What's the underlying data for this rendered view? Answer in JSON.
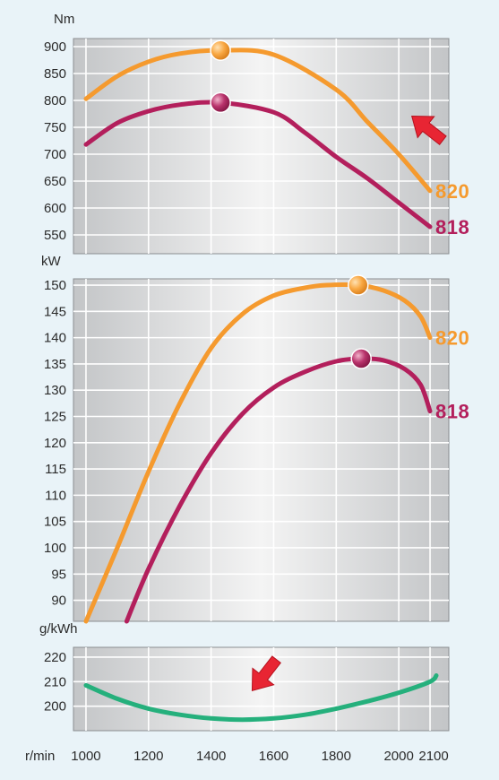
{
  "chart_data": [
    {
      "type": "line",
      "panel": "torque",
      "unit_label": "Nm",
      "y_ticks": [
        900,
        850,
        800,
        750,
        700,
        650,
        600,
        550
      ],
      "ylim": [
        515,
        915
      ],
      "xlim": [
        960,
        2160
      ],
      "grid": true,
      "series": [
        {
          "name": "820",
          "color": "#f59a2e",
          "points": [
            [
              1000,
              803
            ],
            [
              1100,
              845
            ],
            [
              1200,
              872
            ],
            [
              1300,
              887
            ],
            [
              1430,
              893
            ],
            [
              1600,
              885
            ],
            [
              1800,
              820
            ],
            [
              1900,
              760
            ],
            [
              2000,
              700
            ],
            [
              2100,
              632
            ]
          ],
          "peak": [
            1430,
            893
          ]
        },
        {
          "name": "818",
          "color": "#b31f5c",
          "points": [
            [
              1000,
              718
            ],
            [
              1100,
              758
            ],
            [
              1200,
              780
            ],
            [
              1300,
              792
            ],
            [
              1430,
              796
            ],
            [
              1600,
              778
            ],
            [
              1700,
              740
            ],
            [
              1800,
              695
            ],
            [
              1900,
              655
            ],
            [
              2000,
              610
            ],
            [
              2100,
              565
            ]
          ],
          "peak": [
            1430,
            796
          ]
        }
      ],
      "annotation": {
        "type": "arrow",
        "direction": "up-left",
        "color": "#e82533"
      }
    },
    {
      "type": "line",
      "panel": "power",
      "unit_label": "kW",
      "y_ticks": [
        150,
        145,
        140,
        135,
        130,
        125,
        120,
        115,
        110,
        105,
        100,
        95,
        90
      ],
      "ylim": [
        86,
        151.2
      ],
      "xlim": [
        960,
        2160
      ],
      "grid": true,
      "series": [
        {
          "name": "820",
          "color": "#f59a2e",
          "points": [
            [
              1000,
              86
            ],
            [
              1100,
              100
            ],
            [
              1200,
              114.5
            ],
            [
              1300,
              127.5
            ],
            [
              1400,
              138
            ],
            [
              1500,
              144.5
            ],
            [
              1600,
              148
            ],
            [
              1700,
              149.5
            ],
            [
              1770,
              150
            ],
            [
              1870,
              150
            ],
            [
              1950,
              149
            ],
            [
              2020,
              147
            ],
            [
              2070,
              144
            ],
            [
              2100,
              140
            ]
          ],
          "peak": [
            1870,
            150
          ]
        },
        {
          "name": "818",
          "color": "#b31f5c",
          "points": [
            [
              1130,
              86
            ],
            [
              1200,
              96
            ],
            [
              1300,
              108
            ],
            [
              1400,
              118
            ],
            [
              1500,
              125.5
            ],
            [
              1600,
              130.5
            ],
            [
              1700,
              133.5
            ],
            [
              1800,
              135.5
            ],
            [
              1880,
              136
            ],
            [
              1950,
              135.7
            ],
            [
              2020,
              134
            ],
            [
              2070,
              131
            ],
            [
              2100,
              126
            ]
          ],
          "peak": [
            1880,
            136
          ]
        }
      ]
    },
    {
      "type": "line",
      "panel": "consumption",
      "unit_label": "g/kWh",
      "y_ticks": [
        220,
        210,
        200
      ],
      "ylim": [
        190,
        224
      ],
      "xlim": [
        960,
        2160
      ],
      "x_axis_label": "r/min",
      "x_ticks": [
        1000,
        1200,
        1400,
        1600,
        1800,
        2000,
        2100
      ],
      "grid": true,
      "series": [
        {
          "color": "#25b07c",
          "points": [
            [
              1000,
              208.5
            ],
            [
              1100,
              203
            ],
            [
              1200,
              199
            ],
            [
              1300,
              196.5
            ],
            [
              1400,
              195
            ],
            [
              1500,
              194.5
            ],
            [
              1600,
              195
            ],
            [
              1700,
              196.5
            ],
            [
              1800,
              199
            ],
            [
              1900,
              202
            ],
            [
              2000,
              205.5
            ],
            [
              2100,
              210
            ],
            [
              2120,
              212.5
            ]
          ]
        }
      ],
      "annotation": {
        "type": "arrow",
        "direction": "down-left",
        "color": "#e82533"
      }
    }
  ]
}
